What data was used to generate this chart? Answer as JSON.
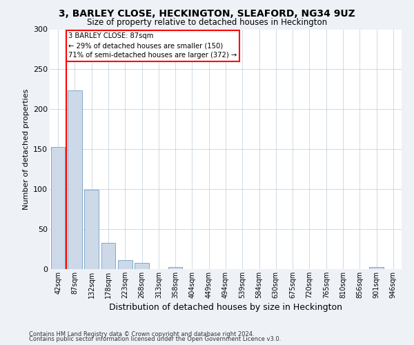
{
  "title_line1": "3, BARLEY CLOSE, HECKINGTON, SLEAFORD, NG34 9UZ",
  "title_line2": "Size of property relative to detached houses in Heckington",
  "xlabel": "Distribution of detached houses by size in Heckington",
  "ylabel": "Number of detached properties",
  "bar_labels": [
    "42sqm",
    "87sqm",
    "132sqm",
    "178sqm",
    "223sqm",
    "268sqm",
    "313sqm",
    "358sqm",
    "404sqm",
    "449sqm",
    "494sqm",
    "539sqm",
    "584sqm",
    "630sqm",
    "675sqm",
    "720sqm",
    "765sqm",
    "810sqm",
    "856sqm",
    "901sqm",
    "946sqm"
  ],
  "bar_values": [
    153,
    224,
    99,
    33,
    11,
    8,
    0,
    3,
    0,
    0,
    0,
    0,
    0,
    0,
    0,
    0,
    0,
    0,
    0,
    3,
    0
  ],
  "bar_color": "#cdd9e8",
  "bar_edge_color": "#7fa8c9",
  "vline_x": 0.5,
  "annotation_text": "3 BARLEY CLOSE: 87sqm\n← 29% of detached houses are smaller (150)\n71% of semi-detached houses are larger (372) →",
  "annotation_box_color": "white",
  "annotation_box_edge": "red",
  "vline_color": "red",
  "ylim": [
    0,
    300
  ],
  "yticks": [
    0,
    50,
    100,
    150,
    200,
    250,
    300
  ],
  "footer_line1": "Contains HM Land Registry data © Crown copyright and database right 2024.",
  "footer_line2": "Contains public sector information licensed under the Open Government Licence v3.0.",
  "bg_color": "#eef2f7",
  "plot_bg_color": "#ffffff",
  "grid_color": "#c8d4df"
}
